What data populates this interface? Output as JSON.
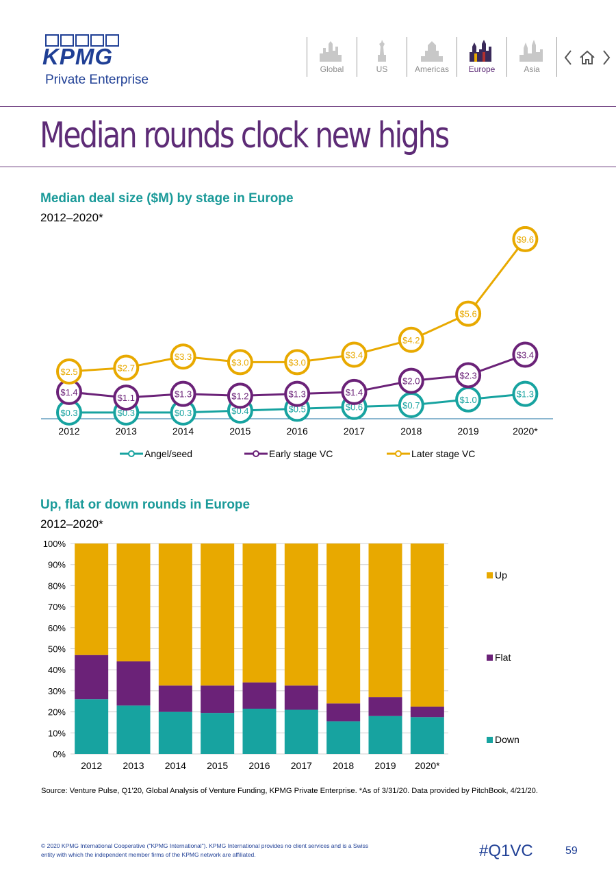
{
  "header": {
    "logo_text": "KPMG",
    "logo_subtitle": "Private Enterprise",
    "nav": [
      {
        "label": "Global",
        "active": false
      },
      {
        "label": "US",
        "active": false
      },
      {
        "label": "Americas",
        "active": false
      },
      {
        "label": "Europe",
        "active": true
      },
      {
        "label": "Asia",
        "active": false
      }
    ]
  },
  "page_title": "Median rounds clock new highs",
  "line_chart": {
    "title": "Median deal size ($M) by stage in Europe",
    "subtitle": "2012–2020*"
  },
  "bar_chart": {
    "title": "Up, flat or down rounds in Europe",
    "subtitle": "2012–2020*"
  },
  "chart_data": [
    {
      "type": "line",
      "title": "Median deal size ($M) by stage in Europe",
      "subtitle": "2012–2020*",
      "categories": [
        "2012",
        "2013",
        "2014",
        "2015",
        "2016",
        "2017",
        "2018",
        "2019",
        "2020*"
      ],
      "series": [
        {
          "name": "Angel/seed",
          "color": "#17a3a0",
          "values": [
            0.3,
            0.3,
            0.3,
            0.4,
            0.5,
            0.6,
            0.7,
            1.0,
            1.3
          ],
          "labels": [
            "$0.3",
            "$0.3",
            "$0.3",
            "$0.4",
            "$0.5",
            "$0.6",
            "$0.7",
            "$1.0",
            "$1.3"
          ]
        },
        {
          "name": "Early stage VC",
          "color": "#6b2278",
          "values": [
            1.4,
            1.1,
            1.3,
            1.2,
            1.3,
            1.4,
            2.0,
            2.3,
            3.4
          ],
          "labels": [
            "$1.4",
            "$1.1",
            "$1.3",
            "$1.2",
            "$1.3",
            "$1.4",
            "$2.0",
            "$2.3",
            "$3.4"
          ]
        },
        {
          "name": "Later stage VC",
          "color": "#e8a900",
          "values": [
            2.5,
            2.7,
            3.3,
            3.0,
            3.0,
            3.4,
            4.2,
            5.6,
            9.6
          ],
          "labels": [
            "$2.5",
            "$2.7",
            "$3.3",
            "$3.0",
            "$3.0",
            "$3.4",
            "$4.2",
            "$5.6",
            "$9.6"
          ]
        }
      ],
      "legend_position": "bottom",
      "grid": false
    },
    {
      "type": "bar",
      "stacked": true,
      "title": "Up, flat or down rounds in Europe",
      "subtitle": "2012–2020*",
      "categories": [
        "2012",
        "2013",
        "2014",
        "2015",
        "2016",
        "2017",
        "2018",
        "2019",
        "2020*"
      ],
      "y_ticks": [
        "0%",
        "10%",
        "20%",
        "30%",
        "40%",
        "50%",
        "60%",
        "70%",
        "80%",
        "90%",
        "100%"
      ],
      "ylim": [
        0,
        100
      ],
      "grid": true,
      "legend_position": "right",
      "series": [
        {
          "name": "Down",
          "color": "#17a3a0",
          "values": [
            26,
            23,
            20,
            19.5,
            21.5,
            21,
            15.5,
            18,
            17.5
          ]
        },
        {
          "name": "Flat",
          "color": "#6b2278",
          "values": [
            21,
            21,
            12.5,
            13,
            12.5,
            11.5,
            8.5,
            9,
            5
          ]
        },
        {
          "name": "Up",
          "color": "#e8a900",
          "values": [
            53,
            56,
            67.5,
            67.5,
            66,
            67.5,
            76,
            73,
            77.5
          ]
        }
      ]
    }
  ],
  "footer": {
    "source": "Source: Venture Pulse, Q1'20, Global Analysis of Venture Funding, KPMG Private Enterprise. *As of 3/31/20. Data provided by PitchBook, 4/21/20.",
    "copyright": "© 2020 KPMG International Cooperative (\"KPMG International\"). KPMG International provides no client services and is a Swiss entity with which the independent member firms of the KPMG network are affiliated.",
    "hashtag": "#Q1VC",
    "page_number": "59"
  }
}
